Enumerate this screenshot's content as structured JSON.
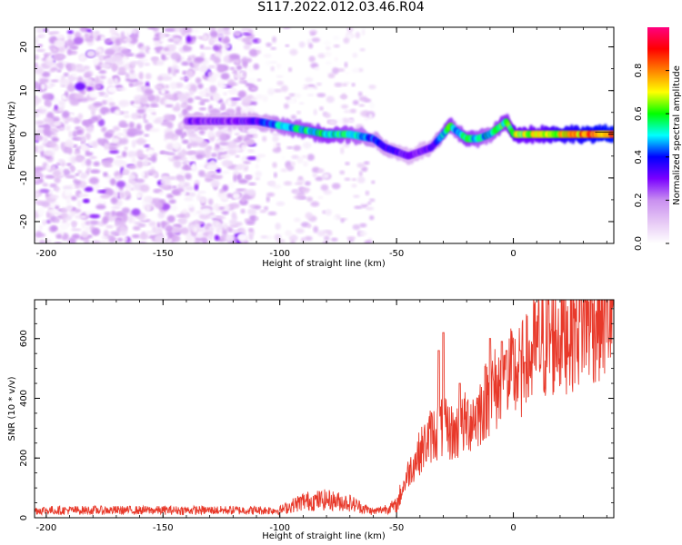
{
  "title": "S117.2022.012.03.46.R04",
  "chart_data": [
    {
      "type": "heatmap",
      "xlabel": "Height of straight line (km)",
      "ylabel": "Frequency (Hz)",
      "xlim": [
        -205,
        43
      ],
      "ylim": [
        -25,
        24.5
      ],
      "x_ticks": [
        -200,
        -150,
        -100,
        -50,
        0
      ],
      "y_ticks": [
        -20,
        -10,
        0,
        10,
        20
      ],
      "colorbar": {
        "label": "Normalized spectral amplitude",
        "range": [
          0,
          1
        ],
        "ticks": [
          0.0,
          0.2,
          0.4,
          0.6,
          0.8
        ],
        "colors": [
          "#ffffff",
          "#e6c8f5",
          "#c98ff0",
          "#7a00ff",
          "#0000ff",
          "#00ffff",
          "#00ff00",
          "#ffff00",
          "#ff8000",
          "#ff0000",
          "#ff0080"
        ]
      },
      "ridge": {
        "x": [
          -140,
          -120,
          -110,
          -100,
          -90,
          -80,
          -70,
          -60,
          -55,
          -50,
          -45,
          -40,
          -35,
          -30,
          -27,
          -25,
          -20,
          -15,
          -10,
          -5,
          -3,
          0,
          10,
          20,
          30,
          40
        ],
        "y": [
          3,
          3,
          3,
          2,
          1,
          0,
          0,
          -1,
          -3,
          -4,
          -5,
          -4,
          -3,
          0,
          2,
          1,
          -1,
          -1,
          0,
          2,
          3,
          0,
          0,
          0,
          0,
          0
        ],
        "peak_amplitude": [
          0.3,
          0.3,
          0.35,
          0.5,
          0.55,
          0.6,
          0.55,
          0.45,
          0.4,
          0.35,
          0.3,
          0.3,
          0.35,
          0.55,
          0.6,
          0.5,
          0.6,
          0.55,
          0.5,
          0.6,
          0.6,
          0.7,
          0.7,
          0.8,
          0.85,
          0.9
        ]
      },
      "noise": {
        "dense_region_x": [
          -205,
          -110
        ],
        "sparse_region_x": [
          -110,
          -60
        ],
        "amplitude": 0.2
      }
    },
    {
      "type": "line",
      "xlabel": "Height of straight line (km)",
      "ylabel": "SNR (10 * v/v)",
      "xlim": [
        -205,
        43
      ],
      "ylim": [
        0,
        730
      ],
      "x_ticks": [
        -200,
        -150,
        -100,
        -50,
        0
      ],
      "y_ticks": [
        0,
        200,
        400,
        600
      ],
      "color": "#e8392a",
      "series_trend": {
        "x": [
          -205,
          -100,
          -90,
          -80,
          -70,
          -60,
          -50,
          -45,
          -40,
          -35,
          -30,
          -25,
          -20,
          -15,
          -10,
          -5,
          0,
          5,
          10,
          20,
          30,
          43
        ],
        "y": [
          25,
          25,
          55,
          60,
          50,
          20,
          40,
          150,
          220,
          280,
          300,
          280,
          320,
          350,
          420,
          440,
          480,
          500,
          570,
          620,
          670,
          700
        ]
      },
      "spikes": [
        {
          "x": -30,
          "y": 620
        },
        {
          "x": -32,
          "y": 560
        },
        {
          "x": -23,
          "y": 450
        },
        {
          "x": -10,
          "y": 600
        },
        {
          "x": -5,
          "y": 590
        },
        {
          "x": -3,
          "y": 560
        },
        {
          "x": 3,
          "y": 560
        },
        {
          "x": 5,
          "y": 520
        }
      ]
    }
  ]
}
